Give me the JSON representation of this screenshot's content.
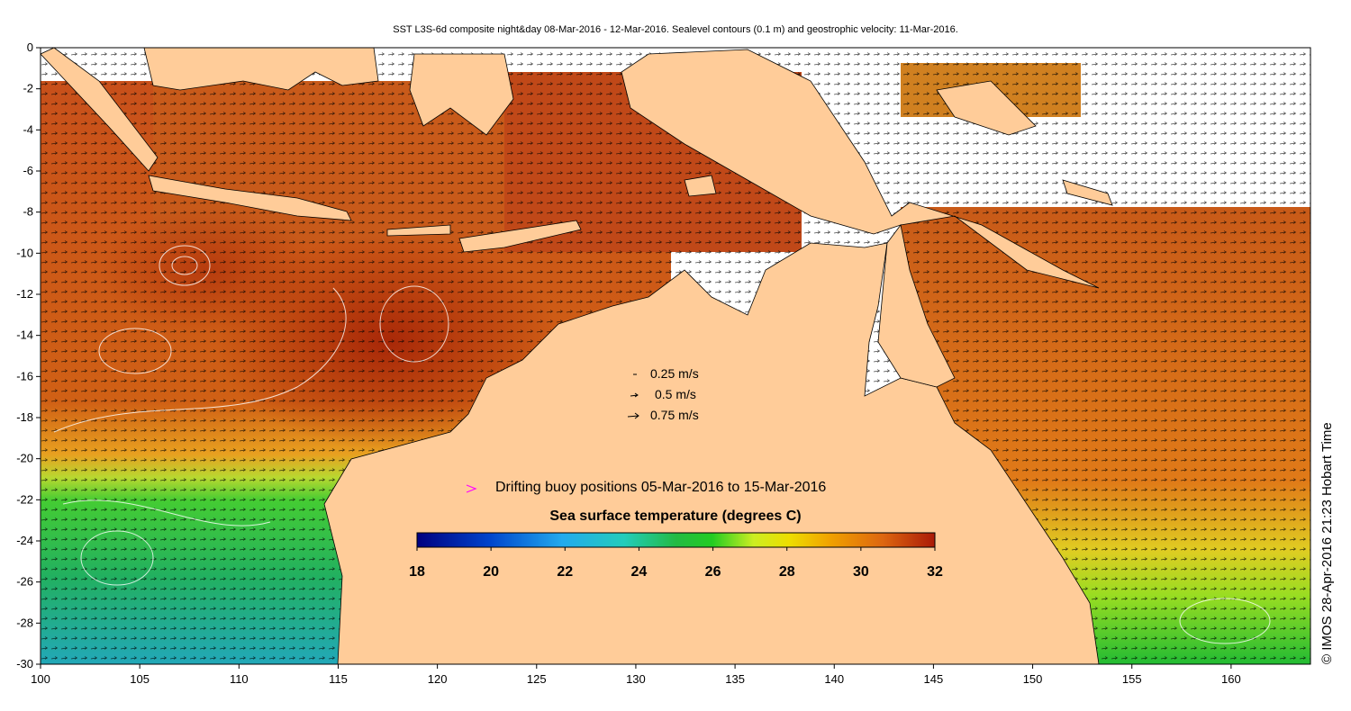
{
  "title": "SST L3S-6d composite night&day 08-Mar-2016 - 12-Mar-2016. Sealevel contours (0.1 m) and geostrophic velocity: 11-Mar-2016.",
  "credit": "© IMOS 28-Apr-2016 21:23 Hobart Time",
  "x_ticks": [
    "100",
    "105",
    "110",
    "115",
    "120",
    "125",
    "130",
    "135",
    "140",
    "145",
    "150",
    "155",
    "160"
  ],
  "y_ticks": [
    "0",
    "-2",
    "-4",
    "-6",
    "-8",
    "-10",
    "-12",
    "-14",
    "-16",
    "-18",
    "-20",
    "-22",
    "-24",
    "-26",
    "-28",
    "-30"
  ],
  "velocity_legend": [
    {
      "label": "0.25 m/s"
    },
    {
      "label": "0.5 m/s"
    },
    {
      "label": "0.75 m/s"
    }
  ],
  "buoy_legend": {
    "label": "Drifting buoy positions 05-Mar-2016 to 15-Mar-2016",
    "color": "#ff00ff"
  },
  "colorbar": {
    "title": "Sea surface temperature (degrees C)",
    "ticks": [
      "18",
      "20",
      "22",
      "24",
      "26",
      "28",
      "30",
      "32"
    ],
    "min": 18,
    "max": 32
  },
  "colors": {
    "land": "#ffcc99",
    "warm_sea": "#c44a10",
    "hot_sea": "#a82808",
    "mid_sea": "#e07a18",
    "cool_sea": "#22bb44",
    "cold_sea": "#22aaaa",
    "yellow_sea": "#dddd22"
  },
  "map_extent": {
    "lon": [
      100,
      164
    ],
    "lat": [
      -30,
      0
    ]
  }
}
